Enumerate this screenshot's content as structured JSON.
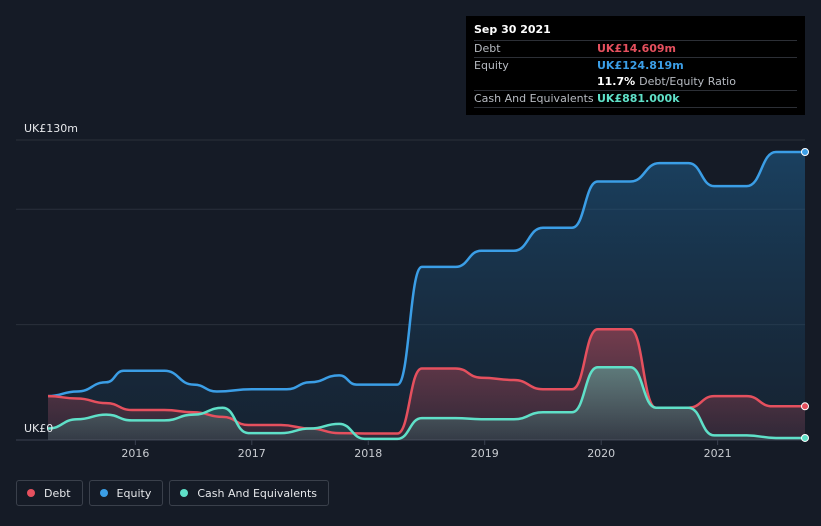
{
  "tooltip": {
    "date": "Sep 30 2021",
    "debt_label": "Debt",
    "debt_value": "UK£14.609m",
    "equity_label": "Equity",
    "equity_value": "UK£124.819m",
    "ratio_value": "11.7%",
    "ratio_label": "Debt/Equity Ratio",
    "cash_label": "Cash And Equivalents",
    "cash_value": "UK£881.000k"
  },
  "legend": [
    {
      "label": "Debt",
      "color": "#e5505e"
    },
    {
      "label": "Equity",
      "color": "#3b9ee6"
    },
    {
      "label": "Cash And Equivalents",
      "color": "#5fe0c8"
    }
  ],
  "chart_data": {
    "type": "area",
    "y_top_label": "UK£130m",
    "y_bottom_label": "UK£0",
    "ylim": [
      0,
      130
    ],
    "xlim": [
      2015.25,
      2021.75
    ],
    "x_ticks": [
      "2016",
      "2017",
      "2018",
      "2019",
      "2020",
      "2021"
    ],
    "grid": true,
    "colors": {
      "debt": "#e5505e",
      "equity": "#3b9ee6",
      "cash": "#5fe0c8"
    },
    "series": [
      {
        "name": "Equity",
        "points": [
          [
            2015.25,
            19
          ],
          [
            2015.5,
            21
          ],
          [
            2015.75,
            25
          ],
          [
            2015.9,
            30
          ],
          [
            2016.25,
            30
          ],
          [
            2016.5,
            24
          ],
          [
            2016.7,
            21
          ],
          [
            2017,
            22
          ],
          [
            2017.3,
            22
          ],
          [
            2017.5,
            25
          ],
          [
            2017.75,
            28
          ],
          [
            2017.9,
            24
          ],
          [
            2018.25,
            24
          ],
          [
            2018.46,
            75
          ],
          [
            2018.75,
            75
          ],
          [
            2018.97,
            82
          ],
          [
            2019.25,
            82
          ],
          [
            2019.5,
            92
          ],
          [
            2019.75,
            92
          ],
          [
            2019.97,
            112
          ],
          [
            2020.25,
            112
          ],
          [
            2020.5,
            120
          ],
          [
            2020.75,
            120
          ],
          [
            2020.97,
            110
          ],
          [
            2021.25,
            110
          ],
          [
            2021.5,
            124.8
          ],
          [
            2021.75,
            124.8
          ]
        ]
      },
      {
        "name": "Debt",
        "points": [
          [
            2015.25,
            19
          ],
          [
            2015.5,
            18
          ],
          [
            2015.75,
            16
          ],
          [
            2015.97,
            13
          ],
          [
            2016.25,
            13
          ],
          [
            2016.5,
            12
          ],
          [
            2016.75,
            10
          ],
          [
            2016.97,
            6.5
          ],
          [
            2017.25,
            6.5
          ],
          [
            2017.5,
            5
          ],
          [
            2017.75,
            3
          ],
          [
            2017.97,
            2.8
          ],
          [
            2018.25,
            2.8
          ],
          [
            2018.46,
            31
          ],
          [
            2018.75,
            31
          ],
          [
            2018.97,
            27
          ],
          [
            2019.25,
            26
          ],
          [
            2019.5,
            22
          ],
          [
            2019.75,
            22
          ],
          [
            2019.97,
            48
          ],
          [
            2020.25,
            48
          ],
          [
            2020.47,
            14
          ],
          [
            2020.75,
            14
          ],
          [
            2020.97,
            19
          ],
          [
            2021.25,
            19
          ],
          [
            2021.47,
            14.6
          ],
          [
            2021.75,
            14.6
          ]
        ]
      },
      {
        "name": "Cash And Equivalents",
        "points": [
          [
            2015.25,
            5
          ],
          [
            2015.5,
            9
          ],
          [
            2015.75,
            11
          ],
          [
            2015.97,
            8.5
          ],
          [
            2016.25,
            8.5
          ],
          [
            2016.5,
            11
          ],
          [
            2016.75,
            14
          ],
          [
            2016.97,
            3
          ],
          [
            2017.25,
            3
          ],
          [
            2017.5,
            5
          ],
          [
            2017.75,
            7
          ],
          [
            2017.97,
            0.5
          ],
          [
            2018.25,
            0.5
          ],
          [
            2018.46,
            9.5
          ],
          [
            2018.75,
            9.5
          ],
          [
            2018.97,
            9
          ],
          [
            2019.25,
            9
          ],
          [
            2019.5,
            12
          ],
          [
            2019.75,
            12
          ],
          [
            2019.97,
            31.5
          ],
          [
            2020.25,
            31.5
          ],
          [
            2020.47,
            14
          ],
          [
            2020.75,
            14
          ],
          [
            2020.97,
            2
          ],
          [
            2021.25,
            2
          ],
          [
            2021.5,
            0.88
          ],
          [
            2021.75,
            0.88
          ]
        ]
      }
    ]
  }
}
